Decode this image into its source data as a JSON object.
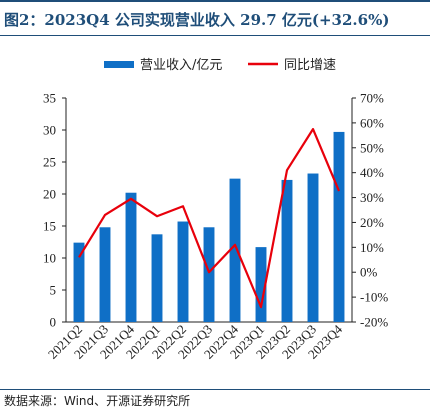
{
  "header": {
    "title": "图2：2023Q4 公司实现营业收入 29.7 亿元(+32.6%)"
  },
  "footer": {
    "source": "数据来源：Wind、开源证券研究所"
  },
  "colors": {
    "bar": "#0f6fc6",
    "line": "#e8000b",
    "title": "#1f4e79"
  },
  "chart_data": {
    "type": "bar",
    "categories": [
      "2021Q2",
      "2021Q3",
      "2021Q4",
      "2022Q1",
      "2022Q2",
      "2022Q3",
      "2022Q4",
      "2023Q1",
      "2023Q2",
      "2023Q3",
      "2023Q4"
    ],
    "series": [
      {
        "name": "营业收入/亿元",
        "type": "bar",
        "axis": "left",
        "values": [
          12.4,
          14.8,
          20.2,
          13.7,
          15.7,
          14.8,
          22.4,
          11.7,
          22.2,
          23.2,
          29.7
        ]
      },
      {
        "name": "同比增速",
        "type": "line",
        "axis": "right",
        "values": [
          6,
          23,
          29.5,
          22.5,
          26.5,
          0,
          11,
          -14,
          41,
          57.5,
          32.6
        ]
      }
    ],
    "y_left": {
      "ylim": [
        0,
        35
      ],
      "ticks": [
        "0",
        "5",
        "10",
        "15",
        "20",
        "25",
        "30",
        "35"
      ]
    },
    "y_right": {
      "ylim": [
        -20,
        70
      ],
      "ticks": [
        "-20%",
        "-10%",
        "0%",
        "10%",
        "20%",
        "30%",
        "40%",
        "50%",
        "60%",
        "70%"
      ]
    },
    "legend_position": "top",
    "grid": false
  }
}
